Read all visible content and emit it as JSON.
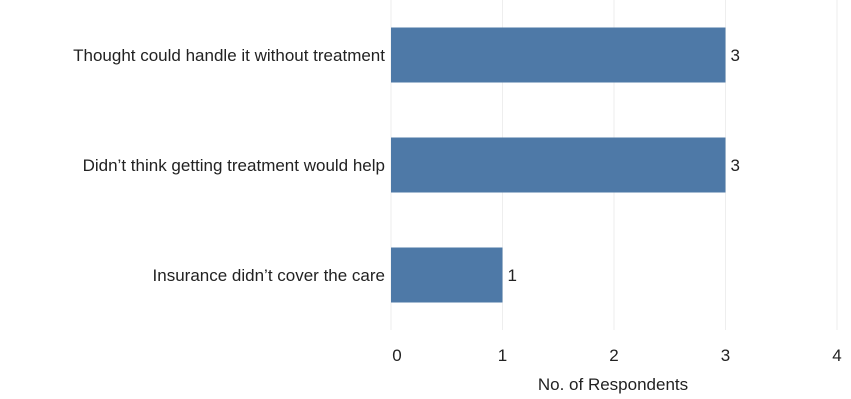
{
  "chart_data": {
    "type": "bar",
    "orientation": "horizontal",
    "categories": [
      "Thought could handle it without treatment",
      "Didn’t think getting treatment would help",
      "Insurance didn’t cover the care"
    ],
    "values": [
      3,
      3,
      1
    ],
    "data_labels": [
      "3",
      "3",
      "1"
    ],
    "xlabel": "No. of Respondents",
    "ylabel": "",
    "xlim": [
      0,
      4
    ],
    "xticks": [
      0,
      1,
      2,
      3,
      4
    ],
    "grid": true,
    "bar_color": "#4e79a7"
  }
}
